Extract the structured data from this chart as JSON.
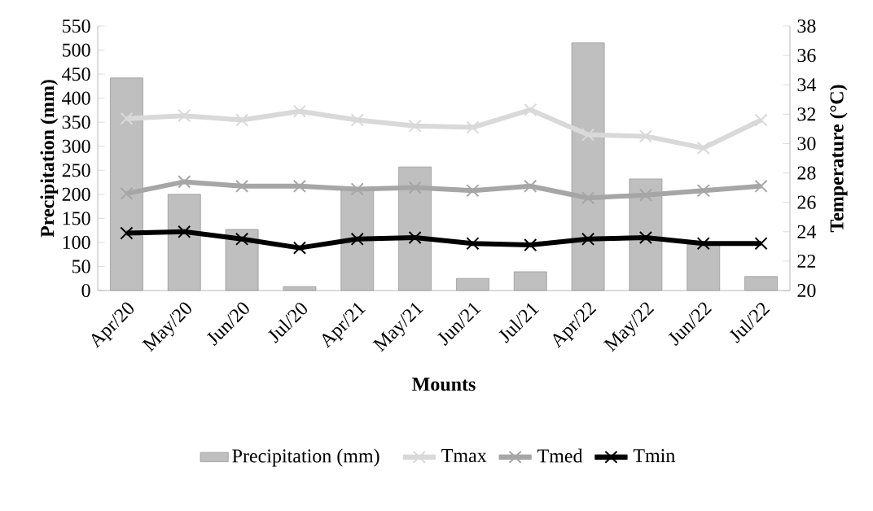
{
  "chart_data": {
    "type": "bar",
    "xlabel": "Mounts",
    "ylabel": "Precipitation (mm)",
    "y2label": "Temperature  (°C)",
    "categories": [
      "Apr/20",
      "May/20",
      "Jun/20",
      "Jul/20",
      "Apr/21",
      "May/21",
      "Jun/21",
      "Jul/21",
      "Apr/22",
      "May/22",
      "Jun/22",
      "Jul/22"
    ],
    "series": [
      {
        "name": "Precipitation (mm)",
        "color": "#bfbfbf",
        "values": [
          442,
          200,
          127,
          8,
          210,
          257,
          25,
          39,
          515,
          232,
          97,
          29
        ]
      },
      {
        "name": "Tmax",
        "type": "line",
        "axis": "y2",
        "color": "#d9d9d9",
        "values": [
          31.7,
          31.9,
          31.6,
          32.2,
          31.6,
          31.2,
          31.1,
          32.3,
          30.6,
          30.5,
          29.7,
          31.6
        ]
      },
      {
        "name": "Tmed",
        "type": "line",
        "axis": "y2",
        "color": "#a6a6a6",
        "values": [
          26.6,
          27.4,
          27.1,
          27.1,
          26.9,
          27.0,
          26.8,
          27.1,
          26.3,
          26.5,
          26.8,
          27.1
        ]
      },
      {
        "name": "Tmin",
        "type": "line",
        "axis": "y2",
        "color": "#000000",
        "values": [
          23.9,
          24.0,
          23.5,
          22.9,
          23.5,
          23.6,
          23.2,
          23.1,
          23.5,
          23.6,
          23.2,
          23.2
        ]
      }
    ],
    "ylim": [
      0,
      550
    ],
    "yticks": [
      0,
      50,
      100,
      150,
      200,
      250,
      300,
      350,
      400,
      450,
      500,
      550
    ],
    "y2lim": [
      20,
      38
    ],
    "y2ticks": [
      20,
      22,
      24,
      26,
      28,
      30,
      32,
      34,
      36,
      38
    ],
    "marker": "cross",
    "line_style": "solid",
    "grid": false,
    "legend": "bottom"
  }
}
